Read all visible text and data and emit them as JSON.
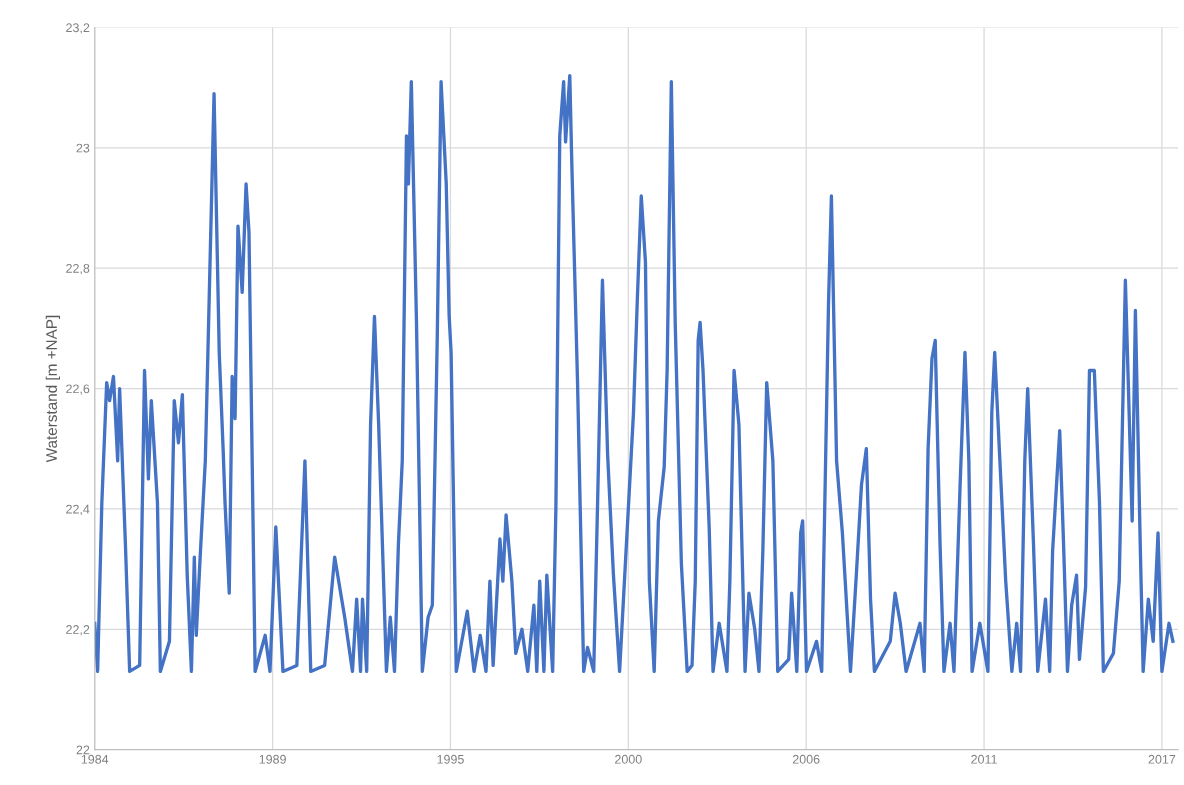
{
  "chart_data": {
    "type": "line",
    "ylabel": "Waterstand [m +NAP]",
    "xlim": [
      1984,
      2017.5
    ],
    "ylim": [
      22,
      23.2
    ],
    "xticks": [
      1984,
      {
        "value": 1989.5,
        "label": "1989"
      },
      1995,
      {
        "value": 2000.5,
        "label": "2000"
      },
      2006,
      {
        "value": 2011.5,
        "label": "2011"
      },
      2017
    ],
    "yticks": [
      22,
      {
        "value": 22.2,
        "label": "22,2"
      },
      {
        "value": 22.4,
        "label": "22,4"
      },
      {
        "value": 22.6,
        "label": "22,6"
      },
      {
        "value": 22.8,
        "label": "22,8"
      },
      23,
      {
        "value": 23.2,
        "label": "23,2"
      }
    ],
    "grid": true,
    "marker": "none",
    "line_style": "solid",
    "series": [
      {
        "color": "#4472c4",
        "x": [
          1984.0,
          1984.09,
          1984.22,
          1984.37,
          1984.46,
          1984.58,
          1984.71,
          1984.77,
          1984.95,
          1985.08,
          1985.39,
          1985.54,
          1985.66,
          1985.75,
          1985.94,
          1986.03,
          1986.31,
          1986.46,
          1986.59,
          1986.71,
          1986.86,
          1986.99,
          1987.08,
          1987.14,
          1987.26,
          1987.42,
          1987.54,
          1987.69,
          1987.85,
          1987.97,
          1988.03,
          1988.16,
          1988.25,
          1988.34,
          1988.43,
          1988.56,
          1988.68,
          1988.77,
          1988.96,
          1989.27,
          1989.42,
          1989.6,
          1989.82,
          1990.25,
          1990.5,
          1990.68,
          1991.11,
          1991.42,
          1991.73,
          1991.97,
          1992.1,
          1992.22,
          1992.28,
          1992.41,
          1992.53,
          1992.65,
          1992.78,
          1993.02,
          1993.14,
          1993.27,
          1993.39,
          1993.51,
          1993.64,
          1993.7,
          1993.79,
          1993.95,
          1994.13,
          1994.31,
          1994.44,
          1994.59,
          1994.71,
          1994.87,
          1994.96,
          1995.02,
          1995.18,
          1995.52,
          1995.73,
          1995.92,
          1996.1,
          1996.22,
          1996.32,
          1996.53,
          1996.62,
          1996.72,
          1996.9,
          1997.02,
          1997.21,
          1997.39,
          1997.58,
          1997.67,
          1997.76,
          1997.89,
          1997.98,
          1998.16,
          1998.26,
          1998.38,
          1998.5,
          1998.56,
          1998.69,
          1998.75,
          1998.93,
          1999.12,
          1999.24,
          1999.43,
          1999.55,
          1999.7,
          1999.86,
          2000.04,
          2000.23,
          2000.41,
          2000.66,
          2000.78,
          2000.9,
          2001.03,
          2001.15,
          2001.3,
          2001.43,
          2001.61,
          2001.7,
          2001.83,
          2001.95,
          2002.14,
          2002.32,
          2002.47,
          2002.57,
          2002.66,
          2002.72,
          2002.81,
          2003.0,
          2003.12,
          2003.31,
          2003.55,
          2003.64,
          2003.77,
          2003.92,
          2004.11,
          2004.23,
          2004.41,
          2004.54,
          2004.66,
          2004.78,
          2004.97,
          2005.12,
          2005.46,
          2005.55,
          2005.71,
          2005.83,
          2005.89,
          2006.01,
          2006.32,
          2006.48,
          2006.69,
          2006.78,
          2006.94,
          2007.12,
          2007.37,
          2007.55,
          2007.71,
          2007.86,
          2007.99,
          2008.11,
          2008.6,
          2008.75,
          2008.91,
          2009.09,
          2009.52,
          2009.65,
          2009.77,
          2009.89,
          2009.99,
          2010.14,
          2010.26,
          2010.45,
          2010.57,
          2010.76,
          2010.91,
          2011.03,
          2011.13,
          2011.37,
          2011.62,
          2011.74,
          2011.83,
          2011.99,
          2012.17,
          2012.36,
          2012.51,
          2012.63,
          2012.76,
          2012.85,
          2013.03,
          2013.16,
          2013.4,
          2013.53,
          2013.62,
          2013.84,
          2013.96,
          2014.08,
          2014.21,
          2014.36,
          2014.45,
          2014.64,
          2014.76,
          2014.91,
          2015.07,
          2015.19,
          2015.5,
          2015.68,
          2015.87,
          2015.96,
          2016.08,
          2016.18,
          2016.33,
          2016.42,
          2016.58,
          2016.73,
          2016.88,
          2017.0,
          2017.22,
          2017.34
        ],
        "values": [
          22.21,
          22.13,
          22.41,
          22.61,
          22.58,
          22.62,
          22.48,
          22.6,
          22.34,
          22.13,
          22.14,
          22.63,
          22.45,
          22.58,
          22.41,
          22.13,
          22.18,
          22.58,
          22.51,
          22.59,
          22.29,
          22.13,
          22.32,
          22.19,
          22.32,
          22.48,
          22.75,
          23.09,
          22.66,
          22.5,
          22.41,
          22.26,
          22.62,
          22.55,
          22.87,
          22.76,
          22.94,
          22.86,
          22.13,
          22.19,
          22.13,
          22.37,
          22.13,
          22.14,
          22.48,
          22.13,
          22.14,
          22.32,
          22.22,
          22.13,
          22.25,
          22.13,
          22.25,
          22.13,
          22.54,
          22.72,
          22.54,
          22.13,
          22.22,
          22.13,
          22.34,
          22.48,
          23.02,
          22.94,
          23.11,
          22.71,
          22.13,
          22.22,
          22.24,
          22.68,
          23.11,
          22.94,
          22.72,
          22.66,
          22.13,
          22.23,
          22.13,
          22.19,
          22.13,
          22.28,
          22.14,
          22.35,
          22.28,
          22.39,
          22.28,
          22.16,
          22.2,
          22.13,
          22.24,
          22.13,
          22.28,
          22.13,
          22.29,
          22.13,
          22.4,
          23.02,
          23.11,
          23.01,
          23.12,
          22.98,
          22.61,
          22.13,
          22.17,
          22.13,
          22.41,
          22.78,
          22.49,
          22.29,
          22.13,
          22.31,
          22.56,
          22.75,
          22.92,
          22.81,
          22.28,
          22.13,
          22.38,
          22.47,
          22.63,
          23.11,
          22.71,
          22.31,
          22.13,
          22.14,
          22.28,
          22.68,
          22.71,
          22.63,
          22.37,
          22.13,
          22.21,
          22.13,
          22.28,
          22.63,
          22.54,
          22.13,
          22.26,
          22.2,
          22.13,
          22.33,
          22.61,
          22.48,
          22.13,
          22.15,
          22.26,
          22.13,
          22.36,
          22.38,
          22.13,
          22.18,
          22.13,
          22.74,
          22.92,
          22.48,
          22.36,
          22.13,
          22.29,
          22.44,
          22.5,
          22.25,
          22.13,
          22.18,
          22.26,
          22.21,
          22.13,
          22.21,
          22.13,
          22.5,
          22.65,
          22.68,
          22.34,
          22.13,
          22.21,
          22.13,
          22.44,
          22.66,
          22.48,
          22.13,
          22.21,
          22.13,
          22.56,
          22.66,
          22.48,
          22.28,
          22.13,
          22.21,
          22.13,
          22.48,
          22.6,
          22.34,
          22.13,
          22.25,
          22.13,
          22.33,
          22.53,
          22.34,
          22.13,
          22.24,
          22.29,
          22.15,
          22.27,
          22.63,
          22.63,
          22.41,
          22.13,
          22.16,
          22.28,
          22.78,
          22.61,
          22.38,
          22.73,
          22.34,
          22.13,
          22.25,
          22.18,
          22.36,
          22.13,
          22.21,
          22.18
        ]
      }
    ]
  }
}
